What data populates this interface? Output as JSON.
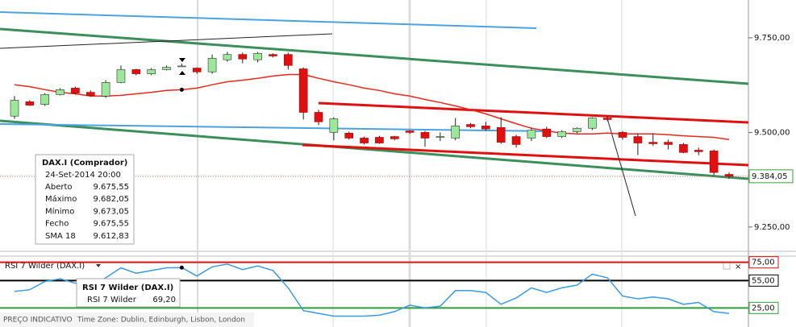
{
  "chart_data": [
    {
      "type": "candlestick",
      "ylim": [
        9190,
        9850
      ],
      "yticks": [
        {
          "value": 9250,
          "label": "9.250,00"
        },
        {
          "value": 9500,
          "label": "9.500,00"
        },
        {
          "value": 9750,
          "label": "9.750,00"
        }
      ],
      "up_color": "#9be89b",
      "down_color": "#e01010",
      "open": [
        9543,
        9581,
        9574,
        9600,
        9617,
        9606,
        9596,
        9632,
        9666,
        9655,
        9666,
        9675.55,
        9670,
        9660,
        9692,
        9706,
        9692,
        9706,
        9706,
        9668,
        9553,
        9500,
        9498,
        9485,
        9487,
        9489,
        9504,
        9500,
        9489,
        9485,
        9521,
        9517,
        9513,
        9489,
        9485,
        9509,
        9489,
        9502,
        9511,
        9538,
        9500,
        9489,
        9474,
        9474,
        9468,
        9453,
        9451,
        9389
      ],
      "high": [
        9596,
        9585,
        9604,
        9617,
        9621,
        9611,
        9638,
        9677,
        9668,
        9670,
        9677,
        9682.05,
        9672,
        9706,
        9713,
        9711,
        9713,
        9709,
        9711,
        9672,
        9560,
        9540,
        9502,
        9489,
        9491,
        9491,
        9506,
        9504,
        9500,
        9538,
        9525,
        9528,
        9540,
        9494,
        9513,
        9515,
        9506,
        9513,
        9540,
        9543,
        9504,
        9498,
        9498,
        9481,
        9472,
        9460,
        9455,
        9394
      ],
      "low": [
        9536,
        9570,
        9570,
        9598,
        9600,
        9594,
        9591,
        9630,
        9651,
        9651,
        9664,
        9673.05,
        9655,
        9655,
        9687,
        9683,
        9685,
        9698,
        9666,
        9534,
        9519,
        9479,
        9481,
        9468,
        9470,
        9479,
        9496,
        9462,
        9477,
        9479,
        9511,
        9504,
        9470,
        9460,
        9477,
        9485,
        9485,
        9498,
        9506,
        9530,
        9481,
        9440,
        9464,
        9455,
        9445,
        9440,
        9387,
        9377
      ],
      "close": [
        9585,
        9572,
        9600,
        9613,
        9604,
        9598,
        9632,
        9666,
        9655,
        9666,
        9672,
        9675.55,
        9660,
        9696,
        9706,
        9694,
        9709,
        9702,
        9677,
        9553,
        9528,
        9536,
        9485,
        9472,
        9472,
        9483,
        9500,
        9485,
        9489,
        9517,
        9515,
        9509,
        9474,
        9468,
        9506,
        9489,
        9502,
        9511,
        9538,
        9534,
        9487,
        9472,
        9470,
        9468,
        9447,
        9449,
        9394,
        9384.05
      ],
      "sma": {
        "name": "SMA 18",
        "color": "#e8281c",
        "values": [
          9626,
          9621,
          9613,
          9606,
          9602,
          9596,
          9596,
          9598,
          9602,
          9606,
          9611,
          9612.83,
          9617,
          9626,
          9634,
          9638,
          9643,
          9649,
          9653,
          9653,
          9643,
          9634,
          9626,
          9617,
          9611,
          9602,
          9596,
          9587,
          9579,
          9570,
          9560,
          9549,
          9536,
          9523,
          9511,
          9504,
          9498,
          9496,
          9496,
          9498,
          9496,
          9496,
          9496,
          9494,
          9491,
          9489,
          9487,
          9481
        ]
      },
      "last_price": {
        "value": 9384.05,
        "label": "9.384,05"
      },
      "tooltip": {
        "title": "DAX.I (Comprador)",
        "date": "24-Set-2014 20:00",
        "rows": [
          {
            "label": "Aberto",
            "value": "9.675,55"
          },
          {
            "label": "Máximo",
            "value": "9.682,05"
          },
          {
            "label": "Mínimo",
            "value": "9.673,05"
          },
          {
            "label": "Fecho",
            "value": "9.675,55"
          }
        ],
        "sma_value": "9.612,83"
      }
    },
    {
      "type": "line",
      "title": "RSI 7 Wilder (DAX.I)",
      "ylim": [
        5,
        80
      ],
      "yticks": [
        {
          "value": 25,
          "label": "25,00"
        },
        {
          "value": 55,
          "label": "55,00"
        },
        {
          "value": 75,
          "label": "75,00"
        }
      ],
      "tick_colors": [
        "#2e9e3a",
        "#000000",
        "#e01010"
      ],
      "series": [
        {
          "name": "RSI 7 Wilder",
          "color": "#3a9be0",
          "values": [
            43,
            45,
            54,
            57,
            52,
            49,
            58,
            69,
            63,
            66,
            69,
            69.2,
            60,
            70,
            73,
            67,
            71,
            66,
            47,
            22,
            19,
            16,
            16,
            16,
            17,
            21,
            28,
            25,
            27,
            44,
            44,
            42,
            29,
            36,
            47,
            42,
            47,
            50,
            62,
            58,
            38,
            35,
            37,
            35,
            29,
            31,
            21,
            19
          ]
        }
      ],
      "tooltip": {
        "value_label": "69,20"
      }
    }
  ],
  "footer": {
    "label": "PREÇO INDICATIVO",
    "timezone": "Time Zone: Dublin, Edinburgh, Lisbon, London"
  }
}
